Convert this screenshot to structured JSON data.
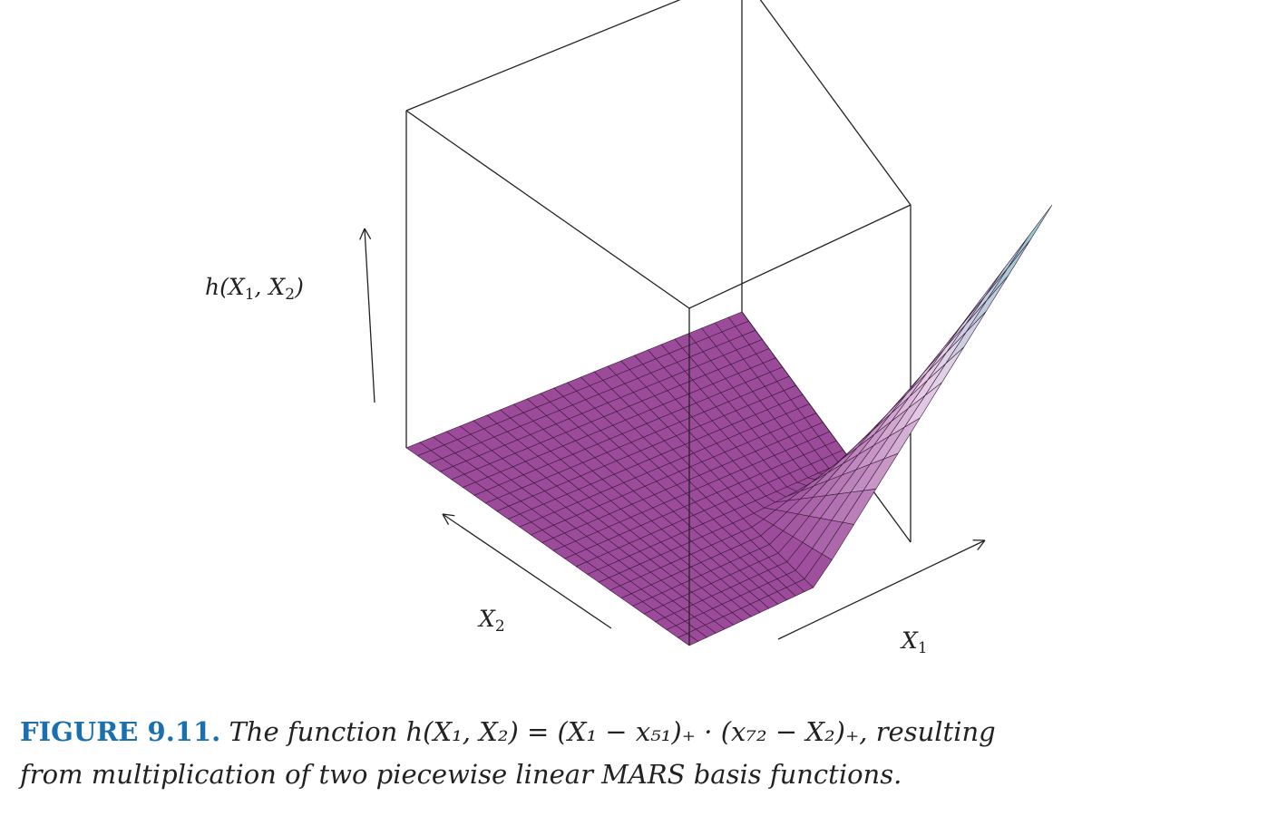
{
  "figure": {
    "number": "FIGURE 9.11.",
    "caption_line1": "The function h(X₁, X₂) = (X₁ − x₅₁)₊ · (x₇₂ − X₂)₊, resulting",
    "caption_line2": "from multiplication of two piecewise linear MARS basis functions."
  },
  "axes": {
    "z": {
      "name": "h",
      "arg1": "X",
      "sub1": "1",
      "arg2": "X",
      "sub2": "2"
    },
    "x2": {
      "name": "X",
      "sub": "2"
    },
    "x1": {
      "name": "X",
      "sub": "1"
    }
  },
  "surface": {
    "grid_n": 25,
    "knot_x1_fraction": 0.57,
    "knot_x2_fraction": 0.33,
    "colors": {
      "low": "#9c4a9a",
      "mid": "#e8d2e8",
      "high": "#7fc6c8",
      "mesh": "#3a1a3a",
      "box": "#222222"
    }
  }
}
